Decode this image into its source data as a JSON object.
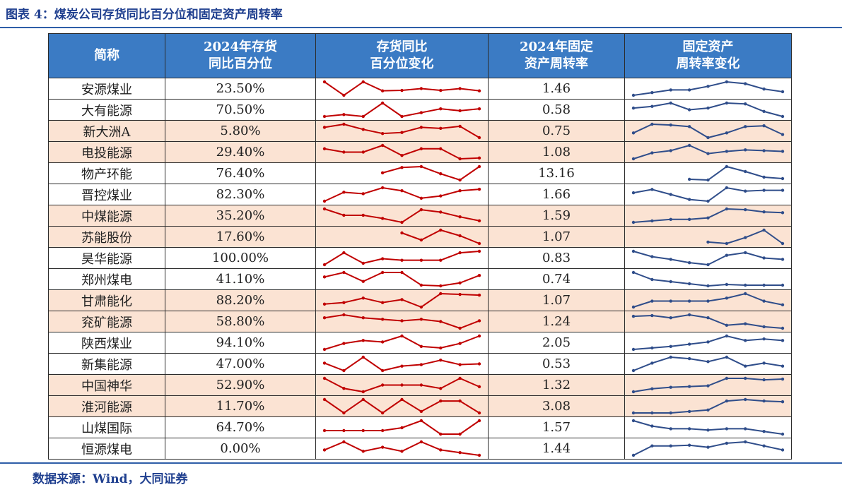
{
  "header": {
    "title": "图表 4：煤炭公司存货同比百分位和固定资产周转率"
  },
  "table": {
    "columns": [
      "简称",
      "2024年存货\n同比百分位",
      "存货同比\n百分位变化",
      "2024年固定\n资产周转率",
      "固定资产\n周转率变化"
    ],
    "red_color": "#c00000",
    "blue_color": "#2f4d8a",
    "rows": [
      {
        "name": "安源煤业",
        "inventory_pct": "23.50%",
        "inventory_trend": [
          90,
          30,
          90,
          50,
          52,
          60,
          52,
          60,
          50
        ],
        "turnover": "1.46",
        "turnover_trend": [
          20,
          35,
          50,
          50,
          70,
          95,
          85,
          55,
          40
        ]
      },
      {
        "name": "大有能源",
        "inventory_pct": "70.50%",
        "inventory_trend": [
          30,
          40,
          30,
          100,
          30,
          50,
          70,
          60,
          70
        ],
        "turnover": "0.58",
        "turnover_trend": [
          60,
          70,
          90,
          50,
          60,
          90,
          85,
          40,
          10
        ]
      },
      {
        "name": "新大洲A",
        "inventory_pct": "5.80%",
        "inventory_trend": [
          70,
          85,
          60,
          40,
          45,
          70,
          65,
          75,
          20
        ],
        "turnover": "0.75",
        "turnover_trend": [
          40,
          95,
          90,
          80,
          10,
          40,
          80,
          85,
          30
        ]
      },
      {
        "name": "电投能源",
        "inventory_pct": "29.40%",
        "inventory_trend": [
          80,
          60,
          60,
          100,
          40,
          80,
          80,
          20,
          25
        ],
        "turnover": "1.08",
        "turnover_trend": [
          10,
          50,
          65,
          100,
          45,
          60,
          70,
          65,
          60
        ]
      },
      {
        "name": "物产环能",
        "inventory_pct": "76.40%",
        "inventory_trend": [
          null,
          null,
          null,
          60,
          90,
          95,
          55,
          20,
          95
        ],
        "turnover": "13.16",
        "turnover_trend": [
          null,
          null,
          null,
          10,
          5,
          100,
          65,
          25,
          15
        ]
      },
      {
        "name": "晋控煤业",
        "inventory_pct": "82.30%",
        "inventory_trend": [
          10,
          70,
          60,
          100,
          80,
          30,
          45,
          80,
          90
        ],
        "turnover": "1.66",
        "turnover_trend": [
          70,
          90,
          60,
          30,
          20,
          100,
          80,
          85,
          85
        ]
      },
      {
        "name": "中煤能源",
        "inventory_pct": "35.20%",
        "inventory_trend": [
          100,
          60,
          60,
          40,
          15,
          95,
          80,
          50,
          25
        ],
        "turnover": "1.59",
        "turnover_trend": [
          10,
          20,
          30,
          30,
          40,
          100,
          95,
          80,
          75
        ]
      },
      {
        "name": "苏能股份",
        "inventory_pct": "17.60%",
        "inventory_trend": [
          null,
          null,
          null,
          null,
          80,
          30,
          100,
          60,
          5
        ],
        "turnover": "1.07",
        "turnover_trend": [
          null,
          null,
          null,
          null,
          20,
          10,
          50,
          100,
          10
        ]
      },
      {
        "name": "昊华能源",
        "inventory_pct": "100.00%",
        "inventory_trend": [
          10,
          90,
          20,
          50,
          40,
          40,
          40,
          90,
          100
        ],
        "turnover": "0.83",
        "turnover_trend": [
          100,
          60,
          40,
          15,
          0,
          70,
          90,
          50,
          40
        ]
      },
      {
        "name": "郑州煤电",
        "inventory_pct": "41.10%",
        "inventory_trend": [
          70,
          100,
          40,
          100,
          100,
          15,
          10,
          30,
          80
        ],
        "turnover": "0.74",
        "turnover_trend": [
          100,
          50,
          35,
          20,
          5,
          15,
          10,
          10,
          10
        ]
      },
      {
        "name": "甘肃能化",
        "inventory_pct": "88.20%",
        "inventory_trend": [
          30,
          40,
          70,
          40,
          60,
          10,
          100,
          95,
          90
        ],
        "turnover": "1.07",
        "turnover_trend": [
          10,
          50,
          50,
          50,
          50,
          70,
          100,
          50,
          25
        ]
      },
      {
        "name": "兖矿能源",
        "inventory_pct": "58.80%",
        "inventory_trend": [
          80,
          100,
          80,
          70,
          60,
          70,
          55,
          10,
          60
        ],
        "turnover": "1.24",
        "turnover_trend": [
          80,
          85,
          70,
          90,
          70,
          20,
          30,
          10,
          0
        ]
      },
      {
        "name": "陕西煤业",
        "inventory_pct": "94.10%",
        "inventory_trend": [
          10,
          50,
          70,
          60,
          100,
          30,
          20,
          50,
          100
        ],
        "turnover": "2.05",
        "turnover_trend": [
          10,
          20,
          30,
          45,
          60,
          100,
          70,
          80,
          70
        ]
      },
      {
        "name": "新集能源",
        "inventory_pct": "47.00%",
        "inventory_trend": [
          60,
          10,
          100,
          10,
          40,
          50,
          80,
          50,
          55
        ],
        "turnover": "0.53",
        "turnover_trend": [
          10,
          60,
          100,
          90,
          70,
          100,
          40,
          60,
          40
        ]
      },
      {
        "name": "中国神华",
        "inventory_pct": "52.90%",
        "inventory_trend": [
          100,
          40,
          20,
          60,
          60,
          60,
          40,
          100,
          50
        ],
        "turnover": "1.32",
        "turnover_trend": [
          10,
          30,
          40,
          45,
          50,
          100,
          100,
          90,
          95
        ]
      },
      {
        "name": "淮河能源",
        "inventory_pct": "11.70%",
        "inventory_trend": [
          100,
          10,
          100,
          10,
          100,
          20,
          90,
          90,
          10
        ],
        "turnover": "3.08",
        "turnover_trend": [
          10,
          10,
          10,
          20,
          30,
          90,
          100,
          90,
          85
        ]
      },
      {
        "name": "山煤国际",
        "inventory_pct": "64.70%",
        "inventory_trend": [
          30,
          30,
          30,
          30,
          50,
          100,
          5,
          5,
          100
        ],
        "turnover": "1.57",
        "turnover_trend": [
          100,
          60,
          40,
          40,
          30,
          40,
          40,
          20,
          0
        ]
      },
      {
        "name": "恒源煤电",
        "inventory_pct": "0.00%",
        "inventory_trend": [
          40,
          100,
          30,
          60,
          30,
          100,
          40,
          20,
          0
        ],
        "turnover": "1.44",
        "turnover_trend": [
          0,
          70,
          70,
          75,
          60,
          90,
          100,
          70,
          40
        ]
      }
    ]
  },
  "footer": {
    "source": "数据来源：Wind，大同证券"
  }
}
